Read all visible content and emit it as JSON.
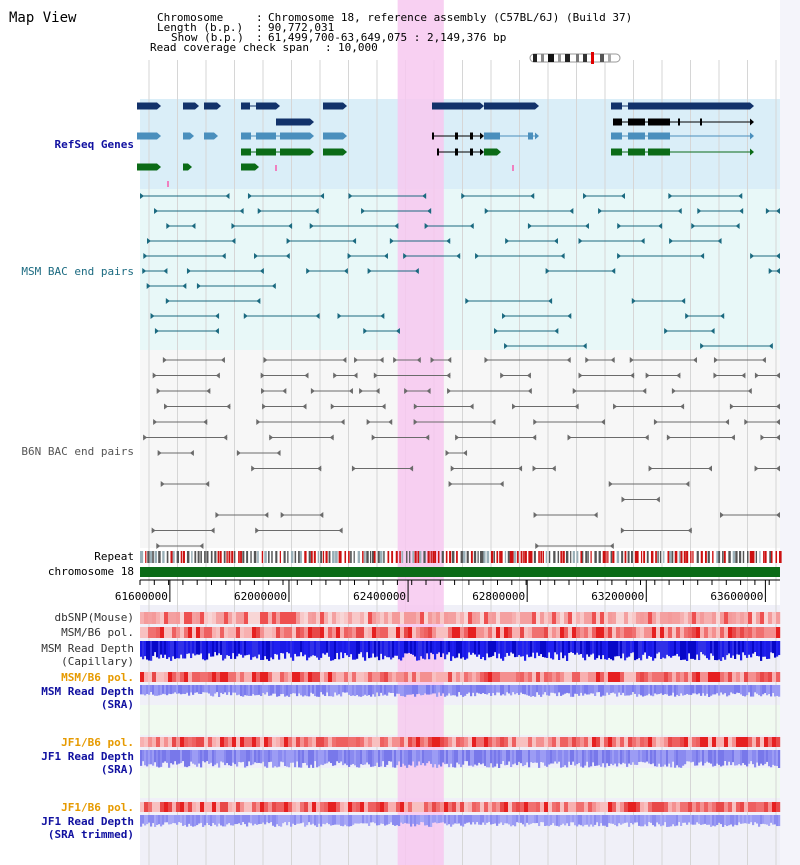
{
  "title": "Map View",
  "header": {
    "chromosome_label": "Chromosome",
    "chromosome_value": "Chromosome 18, reference assembly (C57BL/6J) (Build 37)",
    "length_label": "Length (b.p.)",
    "length_value": "90,772,031",
    "show_label": "Show (b.p.)",
    "show_value": "61,499,700-63,649,075 : 2,149,376 bp",
    "coverage_label": "Read coverage check span",
    "coverage_value": "10,000"
  },
  "tracks": {
    "refseq": "RefSeq Genes",
    "msm_bac": "MSM BAC end pairs",
    "b6n_bac": "B6N BAC end pairs",
    "repeat": "Repeat",
    "chromosome": "chromosome 18",
    "dbsnp": "dbSNP(Mouse)",
    "msm_b6_pol_1": "MSM/B6 pol.",
    "msm_depth_cap_1": "MSM Read Depth",
    "msm_depth_cap_2": "(Capillary)",
    "msm_b6_pol_2": "MSM/B6 pol.",
    "msm_depth_sra_1": "MSM Read Depth",
    "msm_depth_sra_2": "(SRA)",
    "jf1_b6_pol_1": "JF1/B6 pol.",
    "jf1_depth_sra_1": "JF1 Read Depth",
    "jf1_depth_sra_2": "(SRA)",
    "jf1_b6_pol_2": "JF1/B6 pol.",
    "jf1_depth_trim_1": "JF1 Read Depth",
    "jf1_depth_trim_2": "(SRA trimmed)"
  },
  "axis": {
    "ticks": [
      "61600000",
      "62000000",
      "62400000",
      "62800000",
      "63200000",
      "63600000"
    ],
    "tick_values": [
      61600000,
      62000000,
      62400000,
      62800000,
      63200000,
      63600000
    ],
    "range_start": 61499700,
    "range_end": 63649075
  },
  "highlight_region": {
    "start": 62365000,
    "end": 62520000
  },
  "colors": {
    "refseq_dark": "#12326a",
    "refseq_mid": "#4a8fbd",
    "refseq_green": "#0b6b17",
    "msm_bac": "#1b6a80",
    "b6n_bac": "#6b6b6b",
    "highlight": "#f7c8f0",
    "chromosome": "#0b6b17",
    "pol": "#e83030",
    "depth_cap": "#1a1ae6",
    "depth_sra": "#8a8af0",
    "pol_orange": "#e69a00",
    "label_blue": "#1010a0"
  }
}
